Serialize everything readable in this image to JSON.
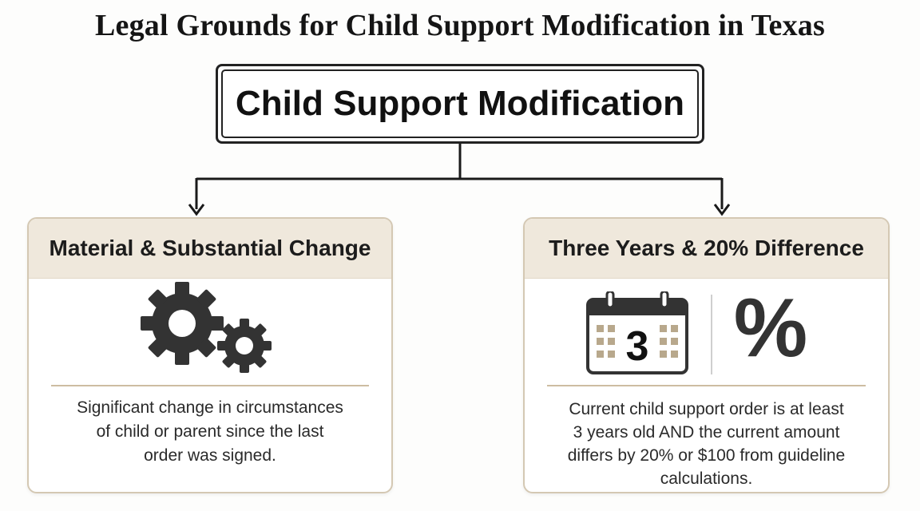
{
  "page": {
    "title": "Legal Grounds for Child Support Modification in Texas"
  },
  "root": {
    "label": "Child Support Modification"
  },
  "branches": [
    {
      "heading": "Material & Substantial Change",
      "icon": "gears-icon",
      "description_lines": [
        "Significant change in circumstances",
        "of child or parent since the last",
        "order was signed."
      ]
    },
    {
      "heading": "Three Years & 20% Difference",
      "icon": "calendar-icon",
      "calendar_number": "3",
      "secondary_icon": "percent-icon",
      "percent_symbol": "%",
      "description_lines": [
        "Current child support order is at least",
        "3 years old AND the current amount",
        "differs by 20% or $100 from guideline",
        "calculations."
      ]
    }
  ],
  "colors": {
    "header_bg": "#efe8dc",
    "card_border": "#d4c8b3",
    "divider": "#cdbda2",
    "calendar_squares": "#b8a88c",
    "icon_dark": "#333333"
  }
}
